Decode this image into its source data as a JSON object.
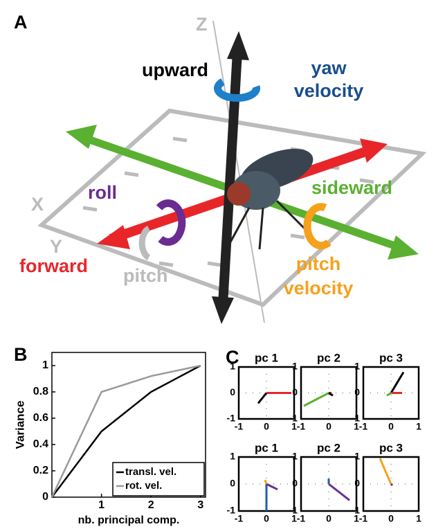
{
  "panel_labels": [
    "A",
    "B",
    "C"
  ],
  "panel_a": {
    "axes": {
      "z": "Z",
      "x": "X",
      "y": "Y"
    },
    "labels": {
      "upward": "upward",
      "yaw": [
        "yaw",
        "velocity"
      ],
      "roll": "roll",
      "sideward": "sideward",
      "forward": "forward",
      "pitch": "pitch",
      "pitch_velocity": [
        "pitch",
        "velocity"
      ]
    }
  },
  "chart_data": [
    {
      "type": "line",
      "xlabel": "nb. principal comp.",
      "ylabel": "Variance",
      "x": [
        0,
        1,
        2,
        3
      ],
      "xlim": [
        0,
        3.1
      ],
      "ylim": [
        0,
        1.1
      ],
      "xticks": [
        1,
        2,
        3
      ],
      "yticks": [
        0,
        0.2,
        0.4,
        0.6,
        0.8,
        1
      ],
      "grid": false,
      "legend": "lower right",
      "series": [
        {
          "name": "transl. vel.",
          "color": "#000000",
          "values": [
            0,
            0.5,
            0.8,
            1
          ]
        },
        {
          "name": "rot. vel.",
          "color": "#999999",
          "values": [
            0,
            0.8,
            0.92,
            1
          ]
        }
      ]
    },
    {
      "type": "line",
      "title": "pc 1",
      "xlim": [
        -1,
        1
      ],
      "ylim": [
        -1,
        1
      ],
      "xticks": [
        -1,
        0,
        1
      ],
      "yticks": [
        -1,
        0,
        1
      ],
      "grid": true,
      "series": [
        {
          "color": "#e8262a",
          "x": [
            0,
            0.9
          ],
          "values": [
            0,
            0
          ]
        },
        {
          "color": "#000000",
          "x": [
            0,
            -0.3
          ],
          "values": [
            0,
            -0.4
          ]
        }
      ]
    },
    {
      "type": "line",
      "title": "pc 2",
      "xlim": [
        -1,
        1
      ],
      "ylim": [
        -1,
        1
      ],
      "xticks": [
        -1,
        0,
        1
      ],
      "yticks": [
        -1,
        0,
        1
      ],
      "grid": true,
      "series": [
        {
          "color": "#5ab030",
          "x": [
            0,
            -0.9
          ],
          "values": [
            0,
            -0.5
          ]
        },
        {
          "color": "#e8262a",
          "x": [
            0,
            0.1
          ],
          "values": [
            0,
            0
          ]
        },
        {
          "color": "#000000",
          "x": [
            0,
            0.15
          ],
          "values": [
            0,
            -0.1
          ]
        }
      ]
    },
    {
      "type": "line",
      "title": "pc 3",
      "xlim": [
        -1,
        1
      ],
      "ylim": [
        -1,
        1
      ],
      "xticks": [
        -1,
        0,
        1
      ],
      "yticks": [
        -1,
        0,
        1
      ],
      "grid": true,
      "series": [
        {
          "color": "#000000",
          "x": [
            0,
            0.45
          ],
          "values": [
            0,
            0.8
          ]
        },
        {
          "color": "#e8262a",
          "x": [
            0,
            0.4
          ],
          "values": [
            0,
            0
          ]
        },
        {
          "color": "#5ab030",
          "x": [
            0,
            -0.15
          ],
          "values": [
            0,
            -0.1
          ]
        }
      ]
    },
    {
      "type": "line",
      "title": "pc 1",
      "xlim": [
        -1,
        1
      ],
      "ylim": [
        -1,
        1
      ],
      "xticks": [
        -1,
        0,
        1
      ],
      "yticks": [
        -1,
        0,
        1
      ],
      "grid": true,
      "series": [
        {
          "color": "#1f5fa8",
          "x": [
            0,
            0
          ],
          "values": [
            0,
            -1
          ]
        },
        {
          "color": "#6a2c91",
          "x": [
            0,
            0.4
          ],
          "values": [
            0,
            -0.2
          ]
        },
        {
          "color": "#f5a11c",
          "x": [
            0,
            -0.05
          ],
          "values": [
            0,
            0.15
          ]
        }
      ]
    },
    {
      "type": "line",
      "title": "pc 2",
      "xlim": [
        -1,
        1
      ],
      "ylim": [
        -1,
        1
      ],
      "xticks": [
        -1,
        0,
        1
      ],
      "yticks": [
        -1,
        0,
        1
      ],
      "grid": true,
      "series": [
        {
          "color": "#6a2c91",
          "x": [
            0,
            0.75
          ],
          "values": [
            0,
            -0.6
          ]
        },
        {
          "color": "#1f5fa8",
          "x": [
            0,
            0
          ],
          "values": [
            0,
            0.2
          ]
        }
      ]
    },
    {
      "type": "line",
      "title": "pc 3",
      "xlim": [
        -1,
        1
      ],
      "ylim": [
        -1,
        1
      ],
      "xticks": [
        -1,
        0,
        1
      ],
      "yticks": [
        -1,
        0,
        1
      ],
      "grid": true,
      "series": [
        {
          "color": "#f5a11c",
          "x": [
            0,
            -0.4
          ],
          "values": [
            0,
            0.95
          ]
        },
        {
          "color": "#6a2c91",
          "x": [
            0,
            0.05
          ],
          "values": [
            0,
            -0.05
          ]
        }
      ]
    }
  ]
}
